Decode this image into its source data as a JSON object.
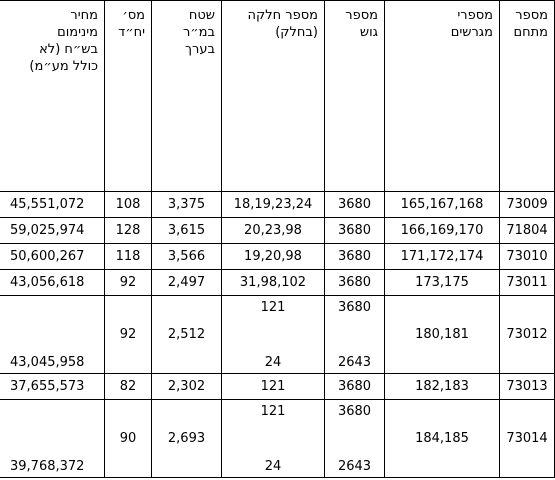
{
  "table": {
    "headers": [
      [
        "מספר",
        "מתחם"
      ],
      [
        "מספרי",
        "מגרשים"
      ],
      [
        "מספר",
        "גוש"
      ],
      [
        "מספר חלקה",
        "(בחלק)"
      ],
      [
        "שטח",
        "במ״ר",
        "בערך"
      ],
      [
        "מס׳",
        "יח״ד"
      ],
      [
        "מחיר",
        "מינימום",
        "בש״ח (לא",
        "כולל מע״מ)"
      ]
    ],
    "rows": [
      [
        "73009",
        "165,167,168",
        "3680",
        "18,19,23,24",
        "3,375",
        "108",
        "45,551,072"
      ],
      [
        "71804",
        "166,169,170",
        "3680",
        "20,23,98",
        "3,615",
        "128",
        "59,025,974"
      ],
      [
        "73010",
        "171,172,174",
        "3680",
        "19,20,98",
        "3,566",
        "118",
        "50,600,267"
      ],
      [
        "73011",
        "173,175",
        "3680",
        "31,98,102",
        "2,497",
        "92",
        "43,056,618"
      ],
      [
        "73012",
        "180,181",
        [
          "3680",
          "2643"
        ],
        [
          "121",
          "24"
        ],
        "2,512",
        "92",
        "43,045,958"
      ],
      [
        "73013",
        "182,183",
        "3680",
        "121",
        "2,302",
        "82",
        "37,655,573"
      ],
      [
        "73014",
        "184,185",
        [
          "3680",
          "2643"
        ],
        [
          "121",
          "24"
        ],
        "2,693",
        "90",
        "39,768,372"
      ]
    ]
  }
}
